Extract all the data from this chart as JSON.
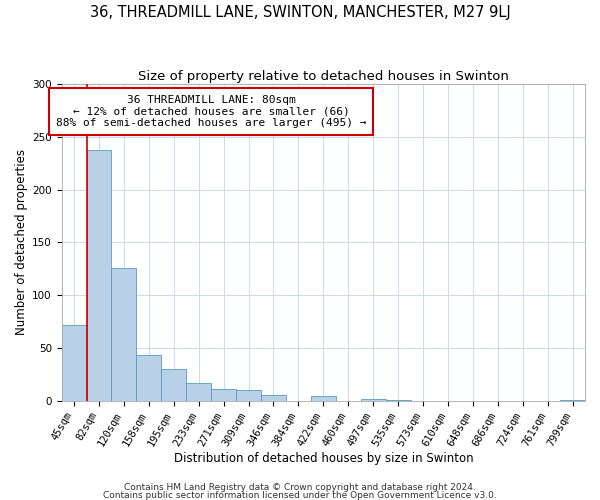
{
  "title": "36, THREADMILL LANE, SWINTON, MANCHESTER, M27 9LJ",
  "subtitle": "Size of property relative to detached houses in Swinton",
  "xlabel": "Distribution of detached houses by size in Swinton",
  "ylabel": "Number of detached properties",
  "bar_labels": [
    "45sqm",
    "82sqm",
    "120sqm",
    "158sqm",
    "195sqm",
    "233sqm",
    "271sqm",
    "309sqm",
    "346sqm",
    "384sqm",
    "422sqm",
    "460sqm",
    "497sqm",
    "535sqm",
    "573sqm",
    "610sqm",
    "648sqm",
    "686sqm",
    "724sqm",
    "761sqm",
    "799sqm"
  ],
  "bar_values": [
    72,
    238,
    126,
    43,
    30,
    17,
    11,
    10,
    5,
    0,
    4,
    0,
    2,
    1,
    0,
    0,
    0,
    0,
    0,
    0,
    1
  ],
  "bar_color": "#b8d0e8",
  "bar_edge_color": "#5a9abf",
  "vline_color": "#cc0000",
  "annotation_title": "36 THREADMILL LANE: 80sqm",
  "annotation_line1": "← 12% of detached houses are smaller (66)",
  "annotation_line2": "88% of semi-detached houses are larger (495) →",
  "annotation_box_color": "#cc0000",
  "ylim": [
    0,
    300
  ],
  "yticks": [
    0,
    50,
    100,
    150,
    200,
    250,
    300
  ],
  "footer1": "Contains HM Land Registry data © Crown copyright and database right 2024.",
  "footer2": "Contains public sector information licensed under the Open Government Licence v3.0.",
  "background_color": "#ffffff",
  "grid_color": "#ccd9e8",
  "title_fontsize": 10.5,
  "subtitle_fontsize": 9.5,
  "axis_label_fontsize": 8.5,
  "tick_fontsize": 7.5,
  "annotation_fontsize": 8,
  "footer_fontsize": 6.5
}
